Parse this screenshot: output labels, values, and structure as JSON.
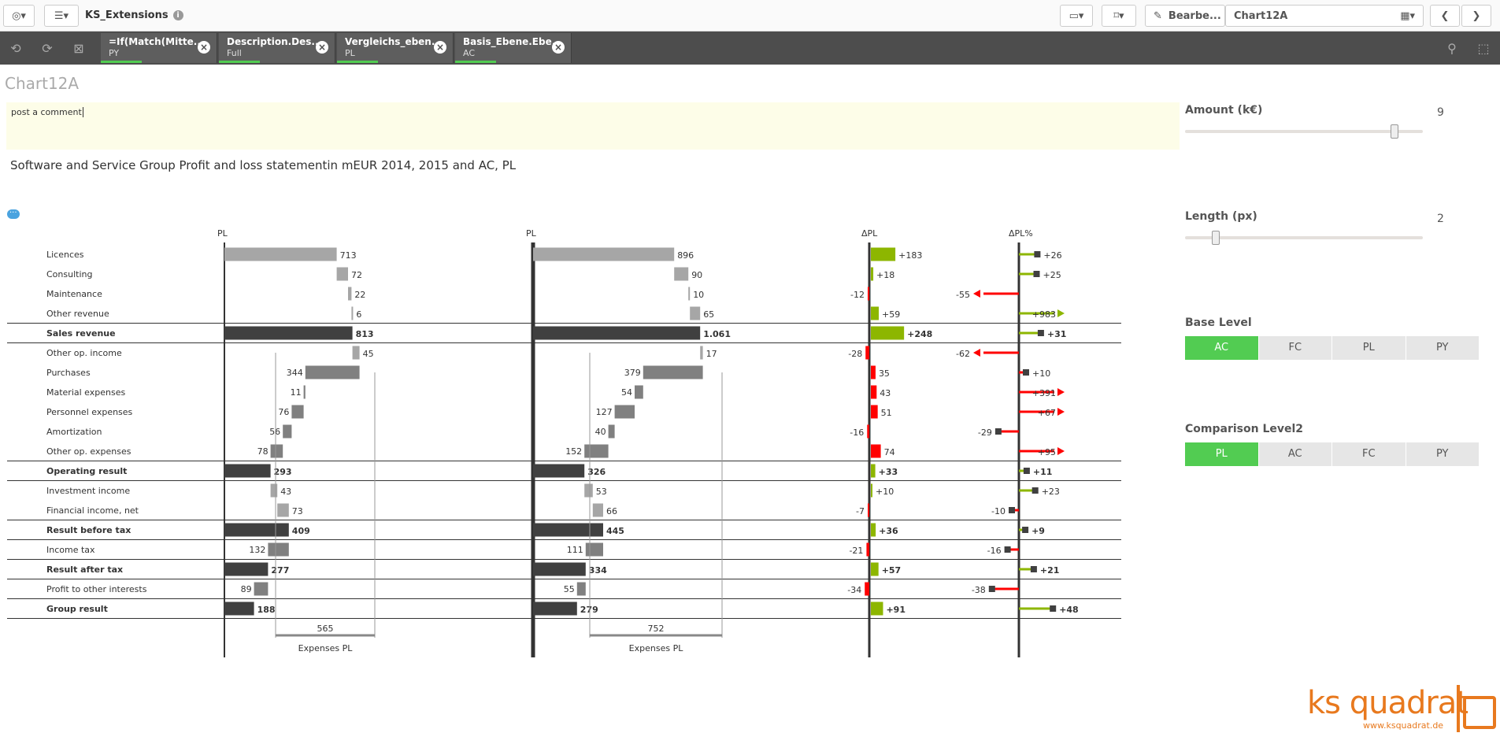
{
  "app": {
    "title": "KS_Extensions",
    "sheet_title": "Chart12A",
    "edit_label": "Bearbe...",
    "sheet_name": "Chart12A"
  },
  "selections": [
    {
      "field": "=If(Match(Mitte...",
      "value": "PY"
    },
    {
      "field": "Description.Des...",
      "value": "Full"
    },
    {
      "field": "Vergleichs_eben...",
      "value": "PL"
    },
    {
      "field": "Basis_Ebene.Ebe...",
      "value": "AC"
    }
  ],
  "comment": {
    "text": "post a comment"
  },
  "chart_subtitle": "Software and Service Group Profit and loss statementin mEUR 2014, 2015 and AC, PL",
  "panel": {
    "amount": {
      "title": "Amount (k€)",
      "value": "9",
      "fraction": 0.88
    },
    "length": {
      "title": "Length (px)",
      "value": "2",
      "fraction": 0.13
    },
    "base_level": {
      "title": "Base Level",
      "options": [
        "AC",
        "FC",
        "PL",
        "PY"
      ],
      "selected": "AC"
    },
    "comparison_level": {
      "title": "Comparison Level2",
      "options": [
        "PL",
        "AC",
        "FC",
        "PY"
      ],
      "selected": "PL"
    }
  },
  "logo": {
    "text": "ks quadrat",
    "url": "www.ksquadrat.de"
  },
  "colors": {
    "positive": "#8db600",
    "negative": "#ff0000",
    "total": "#404040",
    "sub": "#a6a6a6",
    "expense": "#808080",
    "accent": "#52cc52"
  },
  "chart_data": {
    "type": "bar",
    "column_headers": [
      "PL",
      "PL",
      "ΔPL",
      "ΔPL%"
    ],
    "rows": [
      {
        "label": "Licences",
        "kind": "income",
        "bold": false,
        "c1": 713,
        "c1l": "713",
        "c2": 896,
        "c2l": "896",
        "d": 183,
        "dl": "+183",
        "p": 26,
        "pl": "+26"
      },
      {
        "label": "Consulting",
        "kind": "income",
        "bold": false,
        "c1": 72,
        "c1l": "72",
        "c2": 90,
        "c2l": "90",
        "d": 18,
        "dl": "+18",
        "p": 25,
        "pl": "+25"
      },
      {
        "label": "Maintenance",
        "kind": "income",
        "bold": false,
        "c1": 22,
        "c1l": "22",
        "c2": 10,
        "c2l": "10",
        "d": -12,
        "dl": "-12",
        "p": -55,
        "pl": "-55",
        "arrow": "left"
      },
      {
        "label": "Other revenue",
        "kind": "income",
        "bold": false,
        "c1": 6,
        "c1l": "6",
        "c2": 65,
        "c2l": "65",
        "d": 59,
        "dl": "+59",
        "p": 983,
        "pl": "+983",
        "arrow": "right"
      },
      {
        "label": "Sales revenue",
        "kind": "total",
        "bold": true,
        "c1": 813,
        "c1l": "813",
        "c2": 1061,
        "c2l": "1.061",
        "d": 248,
        "dl": "+248",
        "p": 31,
        "pl": "+31"
      },
      {
        "label": "Other op. income",
        "kind": "income",
        "bold": false,
        "c1": 45,
        "c1l": "45",
        "c2": 17,
        "c2l": "17",
        "d": -28,
        "dl": "-28",
        "p": -62,
        "pl": "-62",
        "arrow": "left"
      },
      {
        "label": "Purchases",
        "kind": "expense",
        "bold": false,
        "c1": 344,
        "c1l": "344",
        "c2": 379,
        "c2l": "379",
        "d": 35,
        "dl": "35",
        "p": 10,
        "pl": "+10",
        "neg": true
      },
      {
        "label": "Material expenses",
        "kind": "expense",
        "bold": false,
        "c1": 11,
        "c1l": "11",
        "c2": 54,
        "c2l": "54",
        "d": 43,
        "dl": "43",
        "p": 391,
        "pl": "+391",
        "neg": true,
        "arrow": "right"
      },
      {
        "label": "Personnel expenses",
        "kind": "expense",
        "bold": false,
        "c1": 76,
        "c1l": "76",
        "c2": 127,
        "c2l": "127",
        "d": 51,
        "dl": "51",
        "p": 67,
        "pl": "+67",
        "neg": true,
        "arrow": "right"
      },
      {
        "label": "Amortization",
        "kind": "expense",
        "bold": false,
        "c1": 56,
        "c1l": "56",
        "c2": 40,
        "c2l": "40",
        "d": -16,
        "dl": "-16",
        "p": -29,
        "pl": "-29"
      },
      {
        "label": "Other op. expenses",
        "kind": "expense",
        "bold": false,
        "c1": 78,
        "c1l": "78",
        "c2": 152,
        "c2l": "152",
        "d": 74,
        "dl": "74",
        "p": 95,
        "pl": "+95",
        "neg": true,
        "arrow": "right"
      },
      {
        "label": "Operating result",
        "kind": "total",
        "bold": true,
        "c1": 293,
        "c1l": "293",
        "c2": 326,
        "c2l": "326",
        "d": 33,
        "dl": "+33",
        "p": 11,
        "pl": "+11"
      },
      {
        "label": "Investment income",
        "kind": "income",
        "bold": false,
        "c1": 43,
        "c1l": "43",
        "c2": 53,
        "c2l": "53",
        "d": 10,
        "dl": "+10",
        "p": 23,
        "pl": "+23"
      },
      {
        "label": "Financial income, net",
        "kind": "income",
        "bold": false,
        "c1": 73,
        "c1l": "73",
        "c2": 66,
        "c2l": "66",
        "d": -7,
        "dl": "-7",
        "p": -10,
        "pl": "-10",
        "neg": true
      },
      {
        "label": "Result before tax",
        "kind": "total",
        "bold": true,
        "c1": 409,
        "c1l": "409",
        "c2": 445,
        "c2l": "445",
        "d": 36,
        "dl": "+36",
        "p": 9,
        "pl": "+9"
      },
      {
        "label": "Income tax",
        "kind": "expense",
        "bold": false,
        "c1": 132,
        "c1l": "132",
        "c2": 111,
        "c2l": "111",
        "d": -21,
        "dl": "-21",
        "p": -16,
        "pl": "-16"
      },
      {
        "label": "Result after tax",
        "kind": "total",
        "bold": true,
        "c1": 277,
        "c1l": "277",
        "c2": 334,
        "c2l": "334",
        "d": 57,
        "dl": "+57",
        "p": 21,
        "pl": "+21"
      },
      {
        "label": "Profit to other interests",
        "kind": "expense",
        "bold": false,
        "c1": 89,
        "c1l": "89",
        "c2": 55,
        "c2l": "55",
        "d": -34,
        "dl": "-34",
        "p": -38,
        "pl": "-38"
      },
      {
        "label": "Group result",
        "kind": "total",
        "bold": true,
        "c1": 188,
        "c1l": "188",
        "c2": 279,
        "c2l": "279",
        "d": 91,
        "dl": "+91",
        "p": 48,
        "pl": "+48"
      }
    ],
    "bracket": [
      {
        "value": "565",
        "label": "Expenses PL"
      },
      {
        "value": "752",
        "label": "Expenses PL"
      }
    ]
  }
}
